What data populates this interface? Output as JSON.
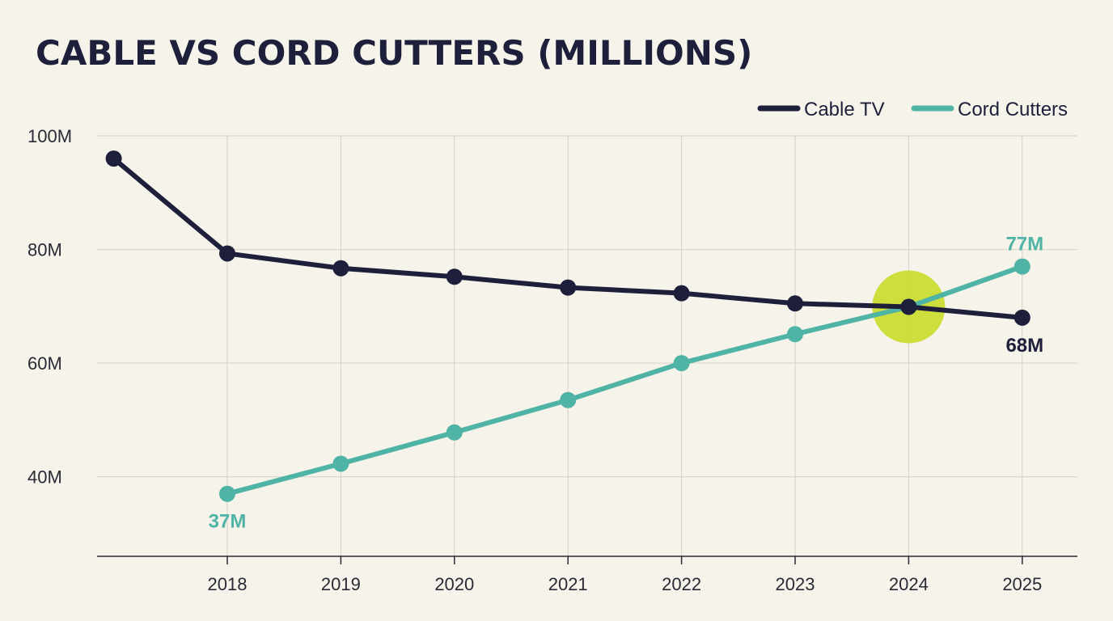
{
  "chart_data": {
    "type": "line",
    "title": "CABLE VS CORD CUTTERS (MILLIONS)",
    "xlabel": "",
    "ylabel": "",
    "x": [
      2017,
      2018,
      2019,
      2020,
      2021,
      2022,
      2023,
      2024,
      2025
    ],
    "x_tick_labels": [
      "",
      "2018",
      "2019",
      "2020",
      "2021",
      "2022",
      "2023",
      "2024",
      "2025"
    ],
    "ylim": [
      26,
      100
    ],
    "y_ticks": [
      100,
      80,
      60,
      40
    ],
    "y_tick_labels": [
      "100M",
      "80M",
      "60M",
      "40M"
    ],
    "grid": true,
    "legend_position": "top-right",
    "series": [
      {
        "name": "Cable TV",
        "color": "#1e1f3a",
        "values": [
          96,
          79.3,
          76.7,
          75.2,
          73.3,
          72.3,
          70.5,
          69.9,
          68
        ]
      },
      {
        "name": "Cord Cutters",
        "color": "#4fb3a5",
        "values": [
          null,
          37,
          42.3,
          47.8,
          53.5,
          60,
          65.1,
          69.9,
          77
        ]
      }
    ],
    "annotations": [
      {
        "text": "37M",
        "series": 1,
        "x": 2018,
        "y": 37,
        "color": "#4fb3a5",
        "position": "below"
      },
      {
        "text": "77M",
        "series": 1,
        "x": 2025,
        "y": 77,
        "color": "#4fb3a5",
        "position": "above"
      },
      {
        "text": "68M",
        "series": 0,
        "x": 2025,
        "y": 68,
        "color": "#1e1f3a",
        "position": "below"
      }
    ],
    "highlight": {
      "x": 2024,
      "y": 69.9,
      "color": "#c9dc2a"
    }
  }
}
